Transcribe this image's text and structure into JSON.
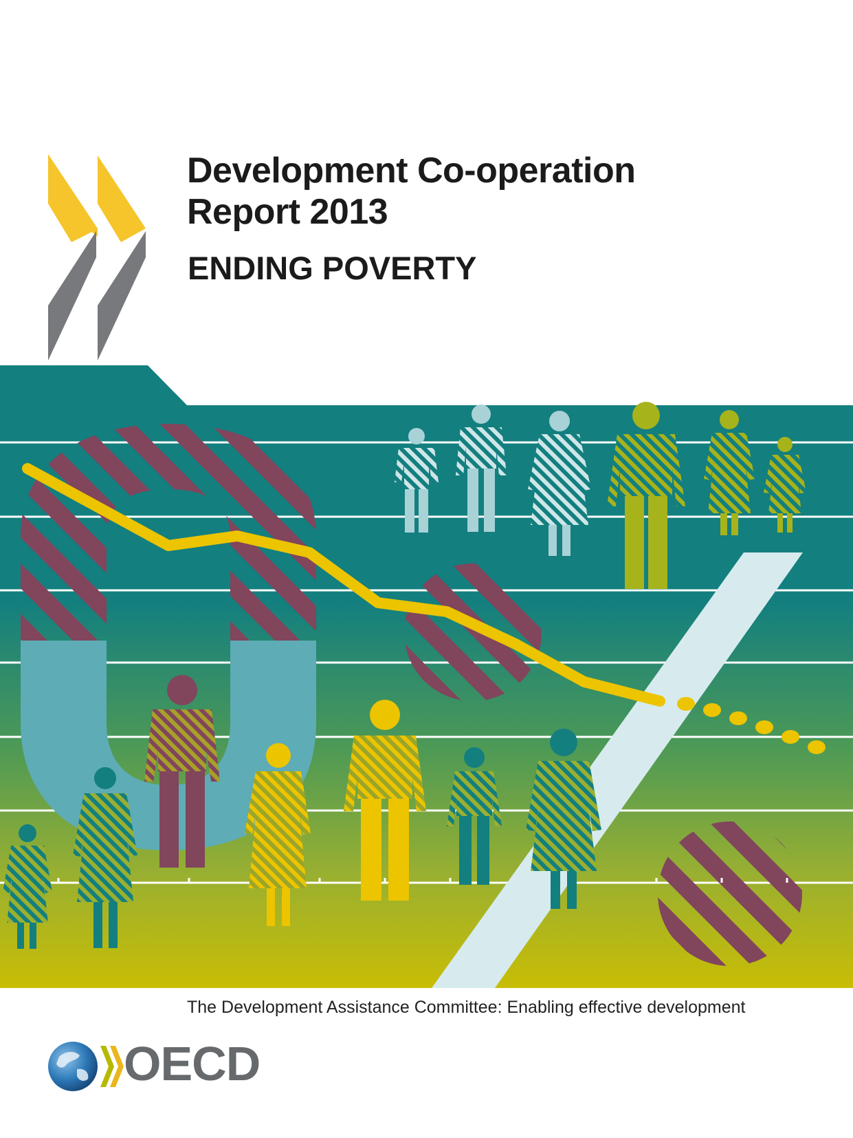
{
  "cover": {
    "title_line1": "Development Co-operation",
    "title_line2": "Report 2013",
    "subtitle": "ENDING POVERTY",
    "tagline": "The Development Assistance Committee: Enabling effective development"
  },
  "publisher": {
    "name": "OECD"
  },
  "colors": {
    "teal": "#137f7f",
    "olive": "#a7b31b",
    "mustard": "#c7bf00",
    "plum": "#81455c",
    "light_blue": "#5eacb6",
    "pale_blue": "#a9d2d7",
    "yellow": "#ecc400",
    "chevron_yellow": "#f5c52b",
    "chevron_grey": "#77797c"
  },
  "icons": [
    "oecd-chevrons-icon",
    "globe-icon"
  ]
}
